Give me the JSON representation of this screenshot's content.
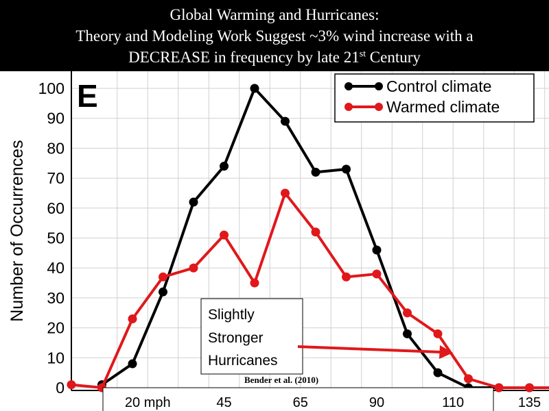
{
  "title": {
    "line1": "Global Warming and Hurricanes:",
    "line2": "Theory and Modeling Work Suggest ~3% wind increase with a",
    "line3_pre": "DECREASE in frequency by late 21",
    "line3_sup": "st",
    "line3_post": " Century"
  },
  "panel_label": "E",
  "annotation": {
    "lines": [
      "Slightly",
      "Stronger",
      "Hurricanes"
    ],
    "arrow_color": "#e0181b"
  },
  "credit": "Bender et al. (2010)",
  "chart_data": {
    "type": "line",
    "ylabel": "Number of Occurrences",
    "ylim": [
      0,
      100
    ],
    "yticks": [
      0,
      10,
      20,
      30,
      40,
      50,
      60,
      70,
      80,
      90,
      100
    ],
    "xticks": [
      {
        "x": 2.5,
        "label": "20 mph"
      },
      {
        "x": 5,
        "label": "45"
      },
      {
        "x": 7.5,
        "label": "65"
      },
      {
        "x": 10,
        "label": "90"
      },
      {
        "x": 12.5,
        "label": "110"
      },
      {
        "x": 15,
        "label": "135"
      }
    ],
    "grid": true,
    "legend_position": "top-right",
    "series": [
      {
        "name": "Control climate",
        "color": "#000000",
        "x": [
          1,
          2,
          3,
          4,
          5,
          6,
          7,
          8,
          9,
          10,
          11,
          12,
          13,
          14,
          15,
          16
        ],
        "y": [
          1,
          8,
          32,
          62,
          74,
          100,
          89,
          72,
          73,
          46,
          18,
          5,
          0,
          0,
          0,
          0
        ]
      },
      {
        "name": "Warmed climate",
        "color": "#e0181b",
        "x": [
          0,
          1,
          2,
          3,
          4,
          5,
          6,
          7,
          8,
          9,
          10,
          11,
          12,
          13,
          14,
          15,
          16
        ],
        "y": [
          1,
          0,
          23,
          37,
          40,
          51,
          35,
          65,
          52,
          37,
          38,
          25,
          18,
          3,
          0,
          0,
          0
        ]
      }
    ]
  }
}
